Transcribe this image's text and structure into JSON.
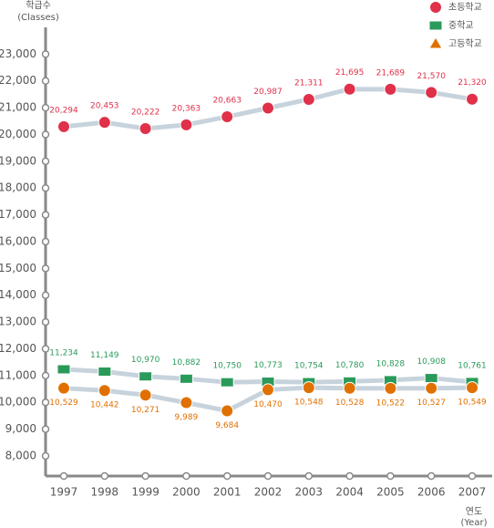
{
  "chart_data": {
    "type": "line",
    "y_label": "학급수",
    "y_label_en": "(Classes)",
    "x_label": "연도",
    "x_label_en": "(Year)",
    "categories": [
      "1997",
      "1998",
      "1999",
      "2000",
      "2001",
      "2002",
      "2003",
      "2004",
      "2005",
      "2006",
      "2007"
    ],
    "ylim": [
      7250,
      24000
    ],
    "yticks": [
      {
        "value": 8000,
        "label": "8,000"
      },
      {
        "value": 9000,
        "label": "9,000"
      },
      {
        "value": 10000,
        "label": "10,000"
      },
      {
        "value": 11000,
        "label": "11,000"
      },
      {
        "value": 12000,
        "label": "12,000"
      },
      {
        "value": 13000,
        "label": "13,000"
      },
      {
        "value": 14000,
        "label": "14,000"
      },
      {
        "value": 15000,
        "label": "15,000"
      },
      {
        "value": 16000,
        "label": "16,000"
      },
      {
        "value": 17000,
        "label": "17,000"
      },
      {
        "value": 18000,
        "label": "18,000"
      },
      {
        "value": 19000,
        "label": "19,000"
      },
      {
        "value": 20000,
        "label": "20,000"
      },
      {
        "value": 21000,
        "label": "21,000"
      },
      {
        "value": 22000,
        "label": "22,000"
      },
      {
        "value": 23000,
        "label": "23,000"
      }
    ],
    "legend": "top-right",
    "series": [
      {
        "name": "초등학교",
        "color": "#e0304a",
        "marker": "circle",
        "values": [
          20294,
          20453,
          20222,
          20363,
          20663,
          20987,
          21311,
          21695,
          21689,
          21570,
          21320
        ],
        "value_labels": [
          "20,294",
          "20,453",
          "20,222",
          "20,363",
          "20,663",
          "20,987",
          "21,311",
          "21,695",
          "21,689",
          "21,570",
          "21,320"
        ]
      },
      {
        "name": "중학교",
        "color": "#2a9a5a",
        "marker": "square",
        "values": [
          11234,
          11149,
          10970,
          10882,
          10750,
          10773,
          10754,
          10780,
          10828,
          10908,
          10761
        ],
        "value_labels": [
          "11,234",
          "11,149",
          "10,970",
          "10,882",
          "10,750",
          "10,773",
          "10,754",
          "10,780",
          "10,828",
          "10,908",
          "10,761"
        ]
      },
      {
        "name": "고등학교",
        "color": "#e07000",
        "marker": "circle",
        "values": [
          10529,
          10442,
          10271,
          9989,
          9684,
          10470,
          10548,
          10528,
          10522,
          10527,
          10549
        ],
        "value_labels": [
          "10,529",
          "10,442",
          "10,271",
          "9,989",
          "9,684",
          "10,470",
          "10,548",
          "10,528",
          "10,522",
          "10,527",
          "10,549"
        ]
      }
    ]
  }
}
